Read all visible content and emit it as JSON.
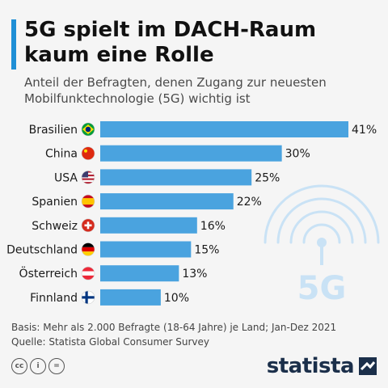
{
  "header": {
    "title_line1": "5G spielt im DACH-Raum",
    "title_line2": "kaum eine Rolle",
    "subtitle_line1": "Anteil der Befragten, denen Zugang zur neuesten",
    "subtitle_line2": "Mobilfunktechnologie (5G) wichtig ist"
  },
  "chart_data": {
    "type": "bar",
    "orientation": "horizontal",
    "categories": [
      "Brasilien",
      "China",
      "USA",
      "Spanien",
      "Schweiz",
      "Deutschland",
      "Österreich",
      "Finnland"
    ],
    "values": [
      41,
      30,
      25,
      22,
      16,
      15,
      13,
      10
    ],
    "value_labels": [
      "41%",
      "30%",
      "25%",
      "22%",
      "16%",
      "15%",
      "13%",
      "10%"
    ],
    "flags": [
      "brazil-flag-icon",
      "china-flag-icon",
      "usa-flag-icon",
      "spain-flag-icon",
      "switzerland-flag-icon",
      "germany-flag-icon",
      "austria-flag-icon",
      "finland-flag-icon"
    ],
    "xlim": [
      0,
      41
    ],
    "bar_color": "#4aa3df",
    "grid": false,
    "legend": "none"
  },
  "decoration": {
    "badge_text": "5G",
    "badge_icon": "5g-antenna-icon",
    "badge_color": "#c9e2f5"
  },
  "footer": {
    "basis": "Basis: Mehr als 2.000 Befragte (18-64 Jahre) je Land; Jan-Dez 2021",
    "source": "Quelle: Statista Global Consumer Survey",
    "license_icons": [
      "cc-icon",
      "by-icon",
      "nd-icon"
    ],
    "brand": "statista"
  },
  "colors": {
    "accent": "#1f8fd6",
    "bar": "#4aa3df",
    "brand": "#1b2f4a"
  }
}
